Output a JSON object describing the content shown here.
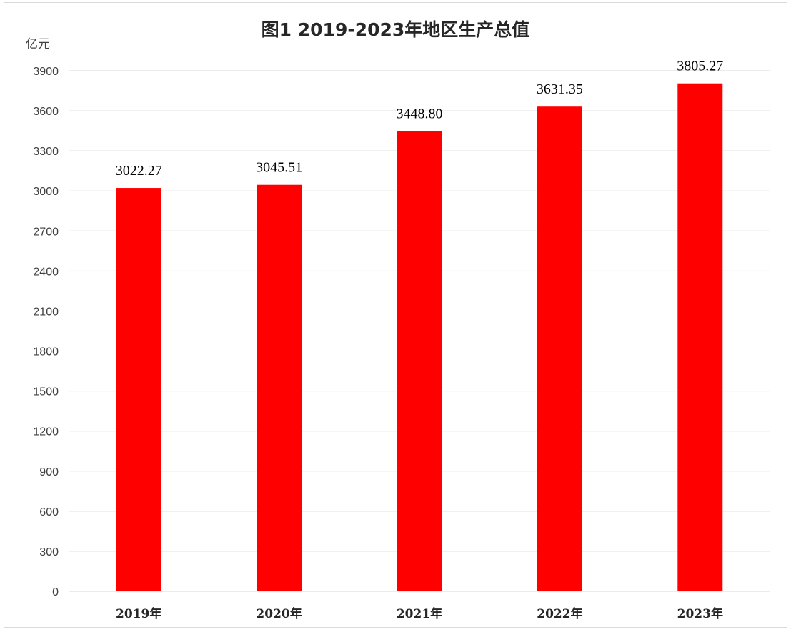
{
  "chart_data": {
    "type": "bar",
    "title": "图1 2019-2023年地区生产总值",
    "ylabel": "亿元",
    "xlabel": "",
    "categories": [
      "2019年",
      "2020年",
      "2021年",
      "2022年",
      "2023年"
    ],
    "values": [
      3022.27,
      3045.51,
      3448.8,
      3631.35,
      3805.27
    ],
    "data_labels": [
      "3022.27",
      "3045.51",
      "3448.80",
      "3631.35",
      "3805.27"
    ],
    "ylim": [
      0,
      3900
    ],
    "yticks": [
      0,
      300,
      600,
      900,
      1200,
      1500,
      1800,
      2100,
      2400,
      2700,
      3000,
      3300,
      3600,
      3900
    ],
    "grid": true,
    "legend": "none",
    "bar_color": "#ff0000",
    "grid_color": "#d9d9d9"
  }
}
